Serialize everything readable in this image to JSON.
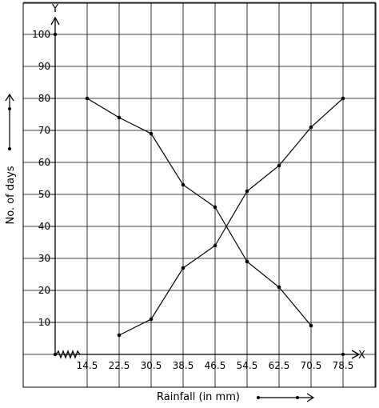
{
  "chart_data": {
    "type": "line",
    "xlabel": "Rainfall (in mm)",
    "ylabel": "No. of days",
    "x_axis_name": "X",
    "y_axis_name": "Y",
    "x": [
      14.5,
      22.5,
      30.5,
      38.5,
      46.5,
      54.5,
      62.5,
      70.5,
      78.5
    ],
    "x_tick_labels": [
      "14.5",
      "22.5",
      "30.5",
      "38.5",
      "46.5",
      "54.5",
      "62.5",
      "70.5",
      "78.5"
    ],
    "y_ticks": [
      10,
      20,
      30,
      40,
      50,
      60,
      70,
      80,
      90,
      100
    ],
    "y_tick_labels": [
      "10",
      "20",
      "30",
      "40",
      "50",
      "60",
      "70",
      "80",
      "90",
      "100"
    ],
    "ylim": [
      0,
      100
    ],
    "grid": true,
    "axis_break": true,
    "series": [
      {
        "x": [
          14.5,
          22.5,
          30.5,
          38.5,
          46.5,
          54.5,
          62.5,
          70.5
        ],
        "values": [
          80,
          74,
          69,
          53,
          46,
          29,
          21,
          9
        ]
      },
      {
        "x": [
          22.5,
          30.5,
          38.5,
          46.5,
          54.5,
          62.5,
          70.5,
          78.5
        ],
        "values": [
          6,
          11,
          27,
          34,
          51,
          59,
          71,
          80
        ]
      }
    ]
  }
}
